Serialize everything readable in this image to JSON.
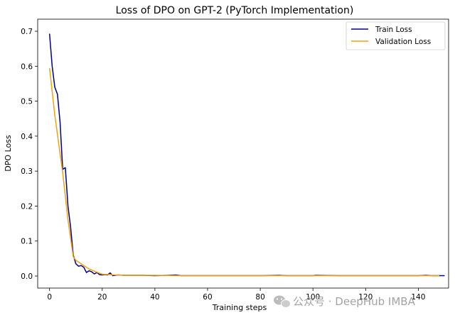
{
  "chart_data": {
    "type": "line",
    "title": "Loss of DPO on GPT-2 (PyTorch Implementation)",
    "xlabel": "Training steps",
    "ylabel": "DPO Loss",
    "xlim": [
      -4.5,
      151.5
    ],
    "ylim": [
      -0.0345,
      0.7346
    ],
    "xticks": [
      0,
      20,
      40,
      60,
      80,
      100,
      120,
      140
    ],
    "yticks": [
      0.0,
      0.1,
      0.2,
      0.3,
      0.4,
      0.5,
      0.6,
      0.7
    ],
    "ytick_labels": [
      "0.0",
      "0.1",
      "0.2",
      "0.3",
      "0.4",
      "0.5",
      "0.6",
      "0.7"
    ],
    "grid": false,
    "legend": "top-right",
    "series": [
      {
        "name": "Train Loss",
        "color": "#00008b",
        "x": [
          0,
          1,
          2,
          3,
          4,
          5,
          6,
          7,
          8,
          9,
          10,
          11,
          12,
          13,
          14,
          15,
          16,
          17,
          18,
          19,
          20,
          21,
          22,
          23,
          24,
          25,
          26,
          28,
          30,
          35,
          40,
          45,
          48,
          50,
          55,
          60,
          63,
          65,
          70,
          80,
          87,
          90,
          100,
          101,
          110,
          120,
          130,
          140,
          143,
          145,
          150
        ],
        "y": [
          0.693,
          0.6,
          0.54,
          0.52,
          0.44,
          0.305,
          0.31,
          0.2,
          0.14,
          0.06,
          0.035,
          0.028,
          0.03,
          0.025,
          0.01,
          0.015,
          0.012,
          0.006,
          0.01,
          0.004,
          0.003,
          0.004,
          0.003,
          0.009,
          0.001,
          0.002,
          0.003,
          0.002,
          0.002,
          0.002,
          0.001,
          0.002,
          0.003,
          0.001,
          0.001,
          0.001,
          0.001,
          0.001,
          0.001,
          0.001,
          0.002,
          0.001,
          0.001,
          0.002,
          0.001,
          0.001,
          0.001,
          0.001,
          0.002,
          0.001,
          0.001
        ]
      },
      {
        "name": "Validation Loss",
        "color": "#f0a30a",
        "x": [
          0,
          2,
          5,
          7,
          9,
          10,
          15,
          20,
          25,
          30,
          40,
          50,
          60,
          80,
          100,
          120,
          140,
          148
        ],
        "y": [
          0.595,
          0.46,
          0.295,
          0.16,
          0.055,
          0.045,
          0.02,
          0.005,
          0.003,
          0.002,
          0.002,
          0.001,
          0.001,
          0.001,
          0.001,
          0.001,
          0.001,
          0.001
        ]
      }
    ]
  },
  "watermark": {
    "text": "公众号 · DeepHub IMBA",
    "icon": "wechat-icon"
  }
}
